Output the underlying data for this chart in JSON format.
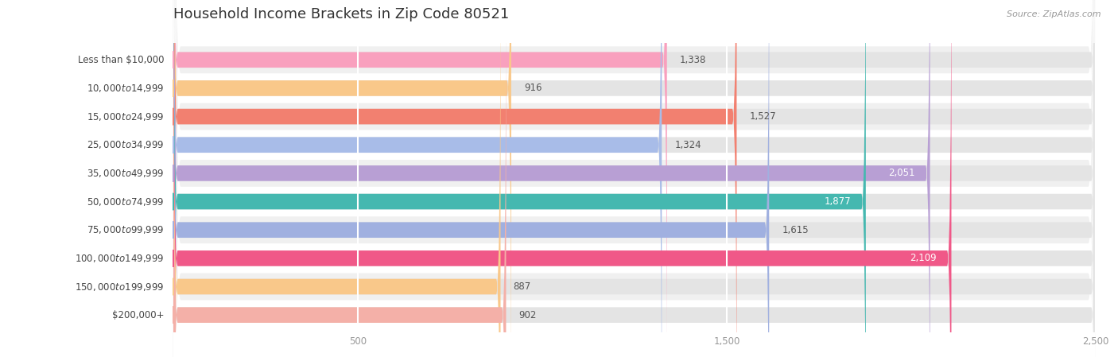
{
  "title": "Household Income Brackets in Zip Code 80521",
  "source": "Source: ZipAtlas.com",
  "categories": [
    "Less than $10,000",
    "$10,000 to $14,999",
    "$15,000 to $24,999",
    "$25,000 to $34,999",
    "$35,000 to $49,999",
    "$50,000 to $74,999",
    "$75,000 to $99,999",
    "$100,000 to $149,999",
    "$150,000 to $199,999",
    "$200,000+"
  ],
  "values": [
    1338,
    916,
    1527,
    1324,
    2051,
    1877,
    1615,
    2109,
    887,
    902
  ],
  "bar_colors": [
    "#f9a0be",
    "#f9c88a",
    "#f28070",
    "#a8bce8",
    "#b89fd4",
    "#45b8b0",
    "#a0b0e0",
    "#f05888",
    "#f9c88a",
    "#f4b0a8"
  ],
  "background_color": "#ffffff",
  "row_bg_color": "#f0f0f0",
  "bar_bg_color": "#e4e4e4",
  "xlim_max": 2500,
  "xticks": [
    500,
    1500,
    2500
  ],
  "title_fontsize": 13,
  "label_fontsize": 8.5,
  "value_fontsize": 8.5,
  "source_fontsize": 8
}
